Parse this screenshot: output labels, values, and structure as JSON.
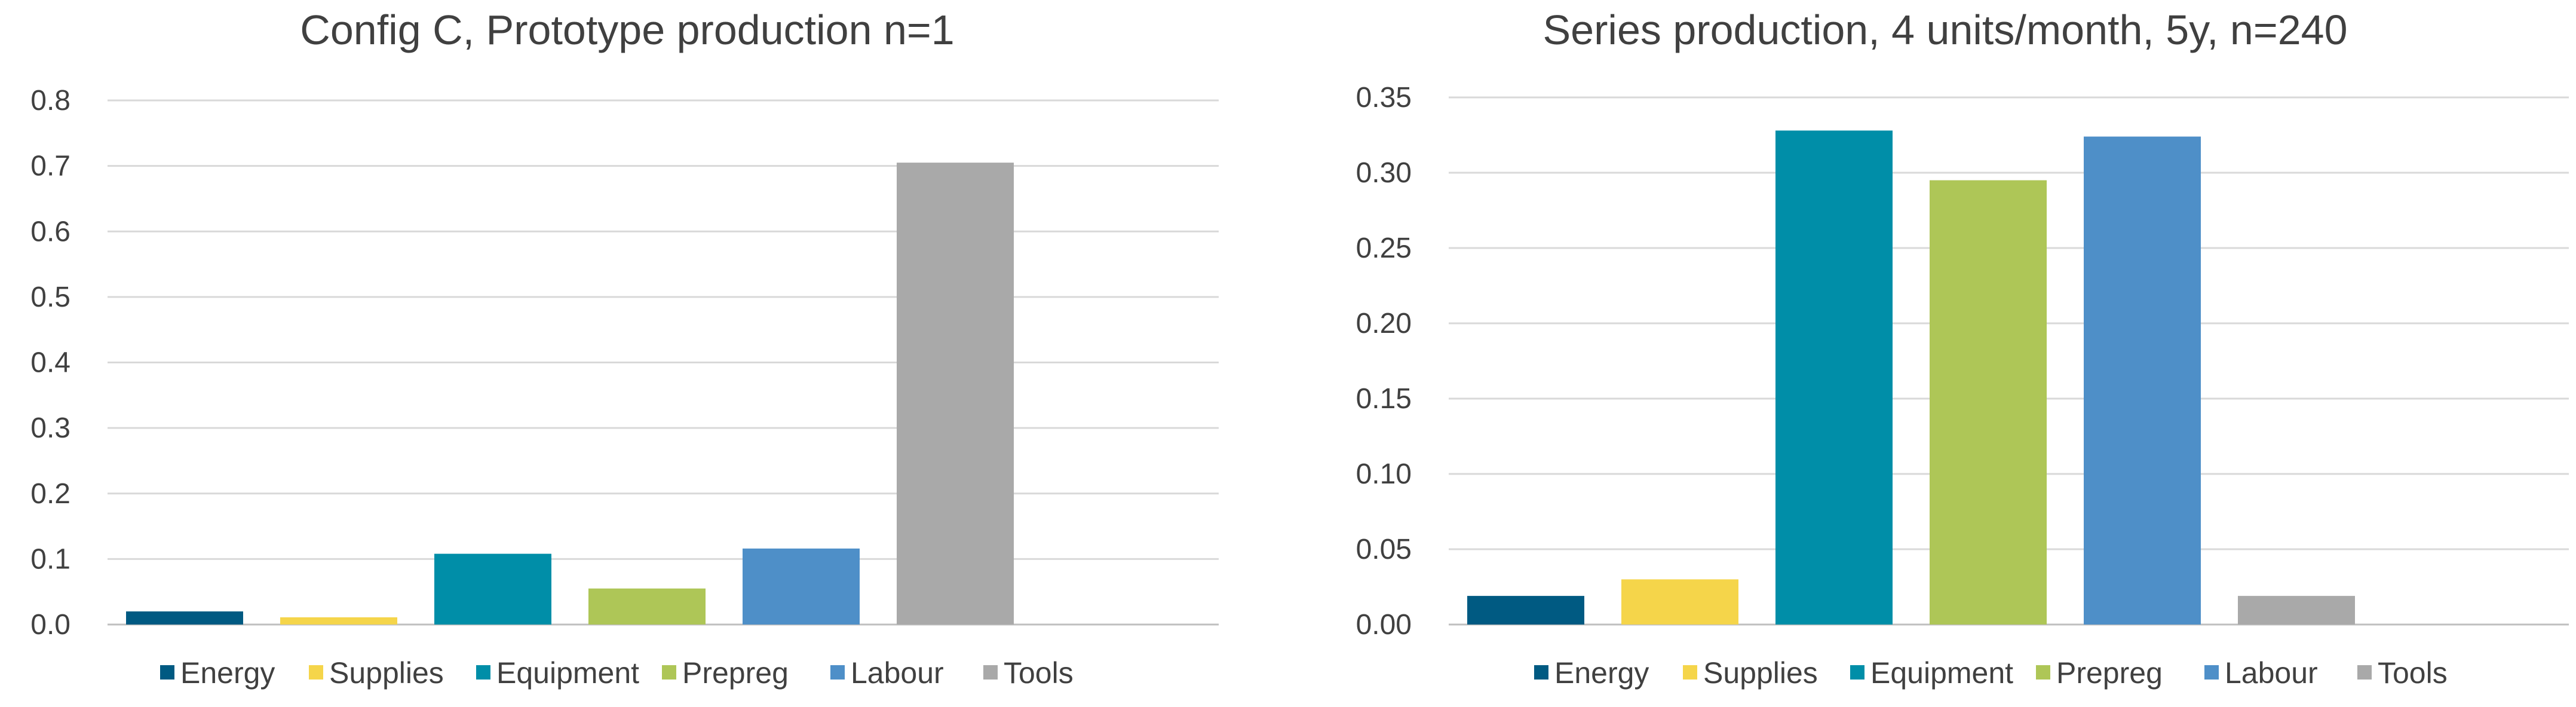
{
  "chart_data": [
    {
      "type": "bar",
      "title": "Config C, Prototype production n=1",
      "categories": [
        "Energy",
        "Supplies",
        "Equipment",
        "Prepreg",
        "Labour",
        "Tools"
      ],
      "values": [
        0.02,
        0.011,
        0.108,
        0.055,
        0.116,
        0.705
      ],
      "colors": [
        "#005a82",
        "#f5d54a",
        "#008ea8",
        "#aec657",
        "#4e8fc8",
        "#a9a9a9"
      ],
      "ylim": [
        0,
        0.8
      ],
      "yticks": [
        "0.0",
        "0.1",
        "0.2",
        "0.3",
        "0.4",
        "0.5",
        "0.6",
        "0.7",
        "0.8"
      ],
      "xlabel": "",
      "ylabel": "",
      "grid": true,
      "legend": "bottom"
    },
    {
      "type": "bar",
      "title": "Series production, 4 units/month, 5y, n=240",
      "categories": [
        "Energy",
        "Supplies",
        "Equipment",
        "Prepreg",
        "Labour",
        "Tools"
      ],
      "values": [
        0.019,
        0.03,
        0.328,
        0.295,
        0.324,
        0.019
      ],
      "colors": [
        "#005a82",
        "#f5d54a",
        "#008ea8",
        "#aec657",
        "#4e8fc8",
        "#a9a9a9"
      ],
      "ylim": [
        0,
        0.35
      ],
      "yticks": [
        "0.00",
        "0.05",
        "0.10",
        "0.15",
        "0.20",
        "0.25",
        "0.30",
        "0.35"
      ],
      "xlabel": "",
      "ylabel": "",
      "grid": true,
      "legend": "bottom"
    }
  ]
}
